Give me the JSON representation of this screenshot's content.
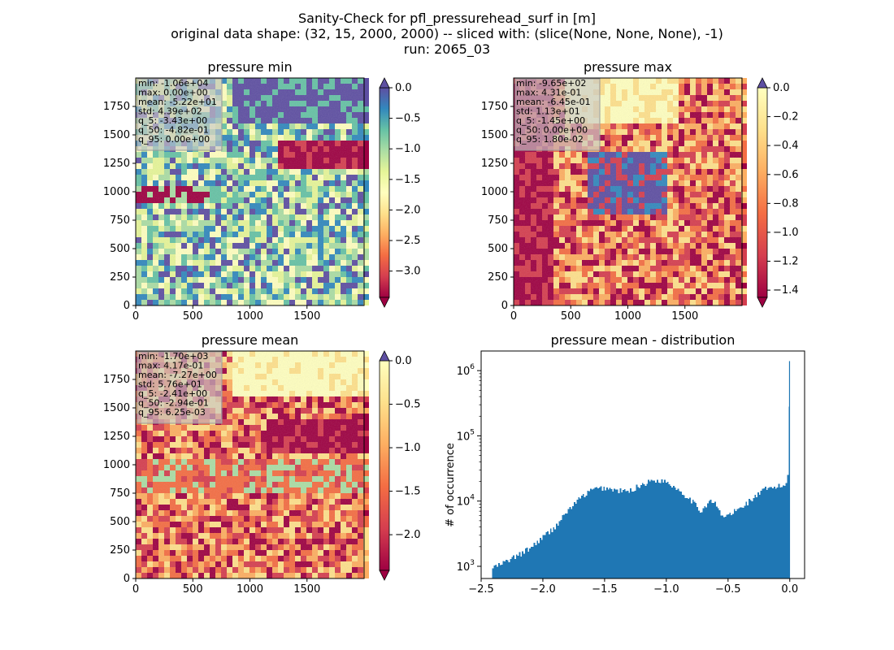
{
  "figure": {
    "title_lines": [
      "Sanity-Check for pfl_pressurehead_surf in [m]",
      "original data shape: (32, 15, 2000, 2000) -- sliced with: (slice(None, None, None), -1)",
      "run: 2065_03"
    ]
  },
  "chart_data": [
    {
      "type": "heatmap",
      "title": "pressure min",
      "xticks": [
        0,
        500,
        1000,
        1500
      ],
      "yticks": [
        0,
        250,
        500,
        750,
        1000,
        1250,
        1500,
        1750
      ],
      "xlim": [
        0,
        2000
      ],
      "ylim": [
        0,
        2000
      ],
      "colormap": "Spectral",
      "colorbar": {
        "ticks": [
          "0.0",
          "−0.5",
          "−1.0",
          "−1.5",
          "−2.0",
          "−2.5",
          "−3.0"
        ],
        "range": [
          -3.43,
          0.0
        ],
        "extend": "both"
      },
      "stats": [
        "min: -1.06e+04",
        "max: 0.00e+00",
        "mean: -5.22e+01",
        "std: 4.39e+02",
        "q_5: -3.43e+00",
        "q_50: -4.82e-01",
        "q_95: 0.00e+00"
      ]
    },
    {
      "type": "heatmap",
      "title": "pressure max",
      "xticks": [
        0,
        500,
        1000,
        1500
      ],
      "yticks": [
        0,
        250,
        500,
        750,
        1000,
        1250,
        1500,
        1750
      ],
      "xlim": [
        0,
        2000
      ],
      "ylim": [
        0,
        2000
      ],
      "colormap": "Spectral",
      "colorbar": {
        "ticks": [
          "0.0",
          "−0.2",
          "−0.4",
          "−0.6",
          "−0.8",
          "−1.0",
          "−1.2",
          "−1.4"
        ],
        "range": [
          -1.45,
          0.0
        ],
        "extend": "both"
      },
      "stats": [
        "min: -9.65e+02",
        "max: 4.31e-01",
        "mean: -6.45e-01",
        "std: 1.13e+01",
        "q_5: -1.45e+00",
        "q_50: 0.00e+00",
        "q_95: 1.80e-02"
      ]
    },
    {
      "type": "heatmap",
      "title": "pressure mean",
      "xticks": [
        0,
        500,
        1000,
        1500
      ],
      "yticks": [
        0,
        250,
        500,
        750,
        1000,
        1250,
        1500,
        1750
      ],
      "xlim": [
        0,
        2000
      ],
      "ylim": [
        0,
        2000
      ],
      "colormap": "Spectral",
      "colorbar": {
        "ticks": [
          "0.0",
          "−0.5",
          "−1.0",
          "−1.5",
          "−2.0"
        ],
        "range": [
          -2.41,
          0.0
        ],
        "extend": "both"
      },
      "stats": [
        "min: -1.70e+03",
        "max: 4.17e-01",
        "mean: -7.27e+00",
        "std: 5.76e+01",
        "q_5: -2.41e+00",
        "q_50: -2.94e-01",
        "q_95: 6.25e-03"
      ]
    },
    {
      "type": "bar",
      "title": "pressure mean - distribution",
      "ylabel": "# of occurrence",
      "xlim": [
        -2.5,
        0.12
      ],
      "ylim": [
        650,
        2000000
      ],
      "yscale": "log",
      "xticks": [
        "−2.5",
        "−2.0",
        "−1.5",
        "−1.0",
        "−0.5",
        "0.0"
      ],
      "yticks": [
        1000,
        10000,
        100000,
        1000000
      ],
      "bar_color": "#1f77b4",
      "histogram": {
        "bin_start": -2.41,
        "bin_width": 0.012,
        "control_points": [
          [
            -2.41,
            950
          ],
          [
            -2.35,
            1050
          ],
          [
            -2.25,
            1300
          ],
          [
            -2.1,
            1900
          ],
          [
            -2.0,
            2800
          ],
          [
            -1.9,
            4000
          ],
          [
            -1.8,
            7000
          ],
          [
            -1.7,
            11000
          ],
          [
            -1.6,
            15000
          ],
          [
            -1.5,
            16000
          ],
          [
            -1.4,
            14500
          ],
          [
            -1.3,
            14000
          ],
          [
            -1.2,
            18000
          ],
          [
            -1.1,
            21000
          ],
          [
            -1.0,
            20000
          ],
          [
            -0.9,
            15000
          ],
          [
            -0.8,
            10500
          ],
          [
            -0.72,
            7000
          ],
          [
            -0.65,
            10000
          ],
          [
            -0.6,
            9000
          ],
          [
            -0.55,
            5800
          ],
          [
            -0.5,
            6000
          ],
          [
            -0.4,
            7800
          ],
          [
            -0.3,
            11000
          ],
          [
            -0.2,
            15000
          ],
          [
            -0.1,
            16500
          ],
          [
            -0.03,
            17500
          ],
          [
            -0.01,
            30000
          ],
          [
            0.0,
            1400000
          ]
        ]
      }
    }
  ]
}
